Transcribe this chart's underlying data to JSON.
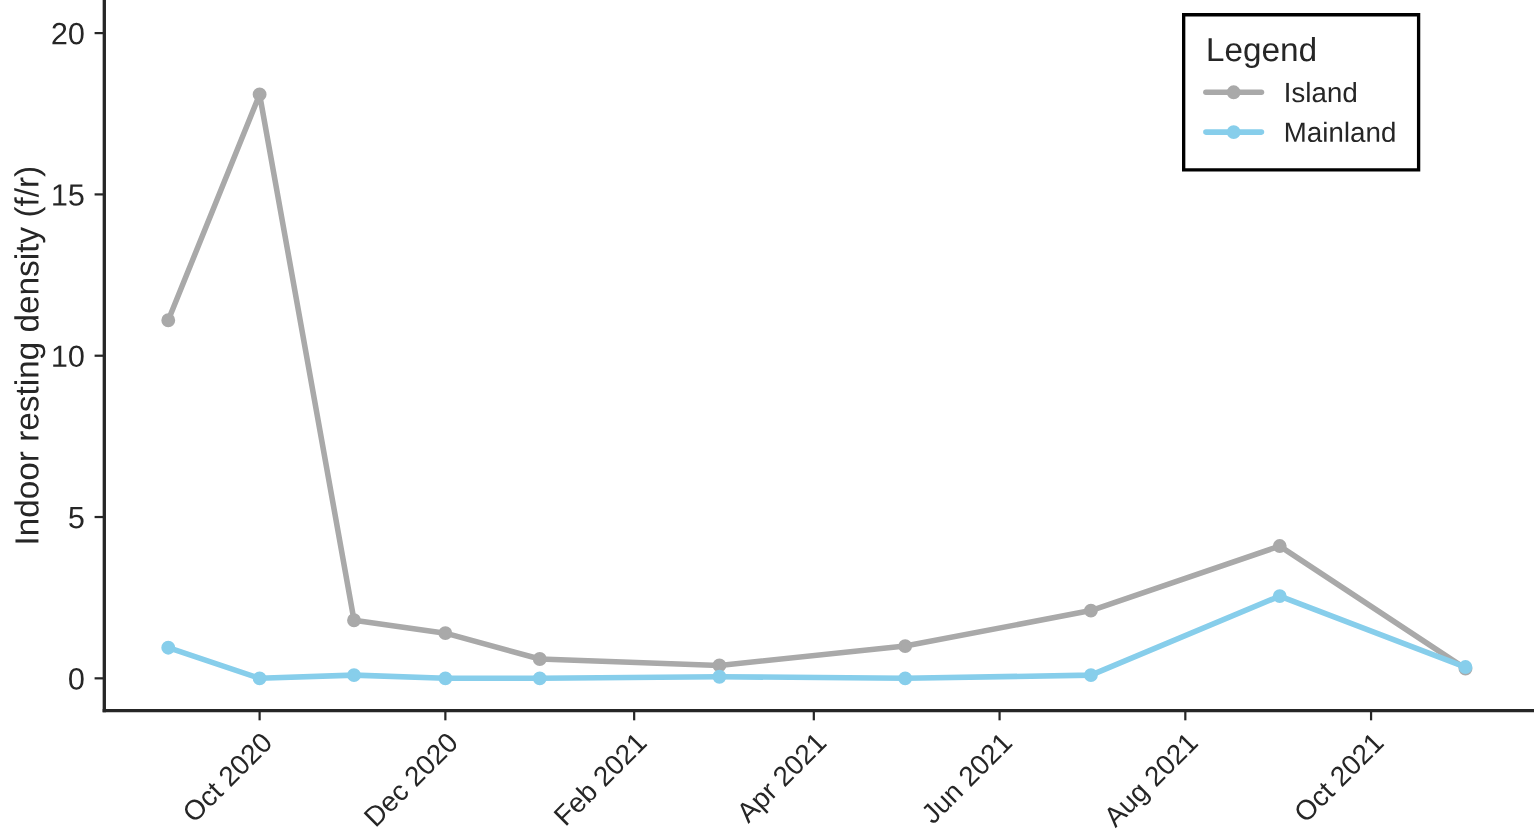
{
  "chart_data": {
    "type": "line",
    "ylabel": "Indoor resting density (f/r)",
    "legend_title": "Legend",
    "legend": "top right",
    "grid": false,
    "marker": "circle",
    "line_style": "solid",
    "x": [
      "2020-09-01",
      "2020-10-01",
      "2020-11-01",
      "2020-12-01",
      "2021-01-01",
      "2021-03-01",
      "2021-05-01",
      "2021-07-01",
      "2021-09-01",
      "2021-11-01"
    ],
    "xlim": [
      "2020-08-11",
      "2021-11-23"
    ],
    "xticks": [
      {
        "value": "2020-10-01",
        "label": "Oct 2020"
      },
      {
        "value": "2020-12-01",
        "label": "Dec 2020"
      },
      {
        "value": "2021-02-01",
        "label": "Feb 2021"
      },
      {
        "value": "2021-04-01",
        "label": "Apr 2021"
      },
      {
        "value": "2021-06-01",
        "label": "Jun 2021"
      },
      {
        "value": "2021-08-01",
        "label": "Aug 2021"
      },
      {
        "value": "2021-10-01",
        "label": "Oct 2021"
      }
    ],
    "ylim": [
      -1,
      21
    ],
    "yticks": [
      0,
      5,
      10,
      15,
      20
    ],
    "series": [
      {
        "name": "Island",
        "color": "#a9a9a9",
        "values": [
          11.1,
          18.1,
          1.8,
          1.4,
          0.6,
          0.4,
          1.0,
          2.1,
          4.1,
          0.3
        ]
      },
      {
        "name": "Mainland",
        "color": "#87ceeb",
        "values": [
          0.95,
          0,
          0.1,
          0,
          0,
          0.05,
          0,
          0.1,
          2.55,
          0.35
        ]
      }
    ]
  }
}
